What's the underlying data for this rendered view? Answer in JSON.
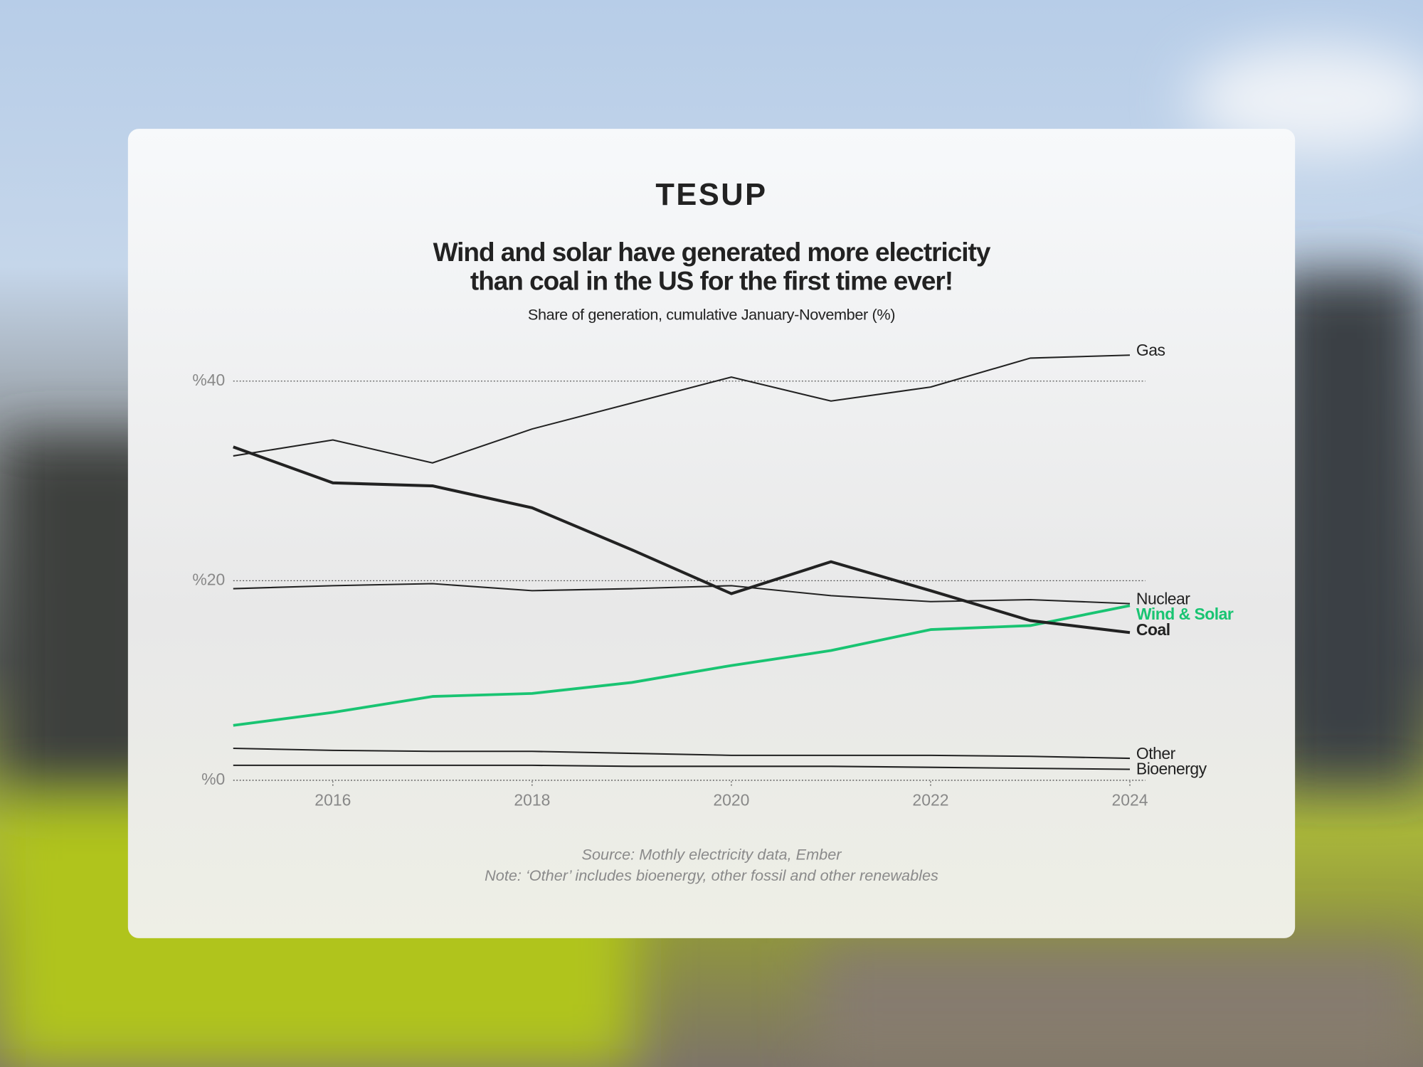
{
  "logo": "TESUP",
  "chart_data": {
    "type": "line",
    "title": [
      "Wind and solar have generated more electricity",
      "than coal in the US for the first time ever!"
    ],
    "subtitle": "Share of generation, cumulative January-November (%)",
    "x": [
      2015,
      2016,
      2017,
      2018,
      2019,
      2020,
      2021,
      2022,
      2023,
      2024
    ],
    "xlim": [
      2015,
      2024
    ],
    "xticks": [
      2016,
      2018,
      2020,
      2022,
      2024
    ],
    "ylim": [
      0,
      45
    ],
    "yticks": [
      {
        "value": 0,
        "label": "%0"
      },
      {
        "value": 20,
        "label": "%20"
      },
      {
        "value": 40,
        "label": "%40"
      }
    ],
    "grid": true,
    "series": [
      {
        "name": "Gas",
        "color": "#222222",
        "width": 1.6,
        "values": [
          32.5,
          34.1,
          31.8,
          35.2,
          37.8,
          40.4,
          38.0,
          39.4,
          42.3,
          42.6
        ]
      },
      {
        "name": "Nuclear",
        "color": "#222222",
        "width": 1.6,
        "values": [
          19.2,
          19.5,
          19.7,
          19.0,
          19.2,
          19.5,
          18.5,
          17.9,
          18.1,
          17.7
        ]
      },
      {
        "name": "Wind & Solar",
        "color": "#19c472",
        "width": 3,
        "values": [
          5.5,
          6.8,
          8.4,
          8.7,
          9.8,
          11.5,
          13.0,
          15.1,
          15.5,
          17.5
        ]
      },
      {
        "name": "Coal",
        "color": "#222222",
        "width": 3.2,
        "values": [
          33.4,
          29.8,
          29.5,
          27.3,
          23.1,
          18.7,
          21.9,
          19.0,
          16.0,
          14.8
        ]
      },
      {
        "name": "Other",
        "color": "#222222",
        "width": 1.6,
        "values": [
          3.2,
          3.0,
          2.9,
          2.9,
          2.7,
          2.5,
          2.5,
          2.5,
          2.4,
          2.2
        ]
      },
      {
        "name": "Bioenergy",
        "color": "#222222",
        "width": 1.6,
        "values": [
          1.5,
          1.5,
          1.5,
          1.5,
          1.4,
          1.4,
          1.4,
          1.3,
          1.2,
          1.1
        ]
      }
    ],
    "source": "Source: Mothly electricity data, Ember",
    "note": "Note: ‘Other’ includes bioenergy, other fossil and other renewables"
  }
}
